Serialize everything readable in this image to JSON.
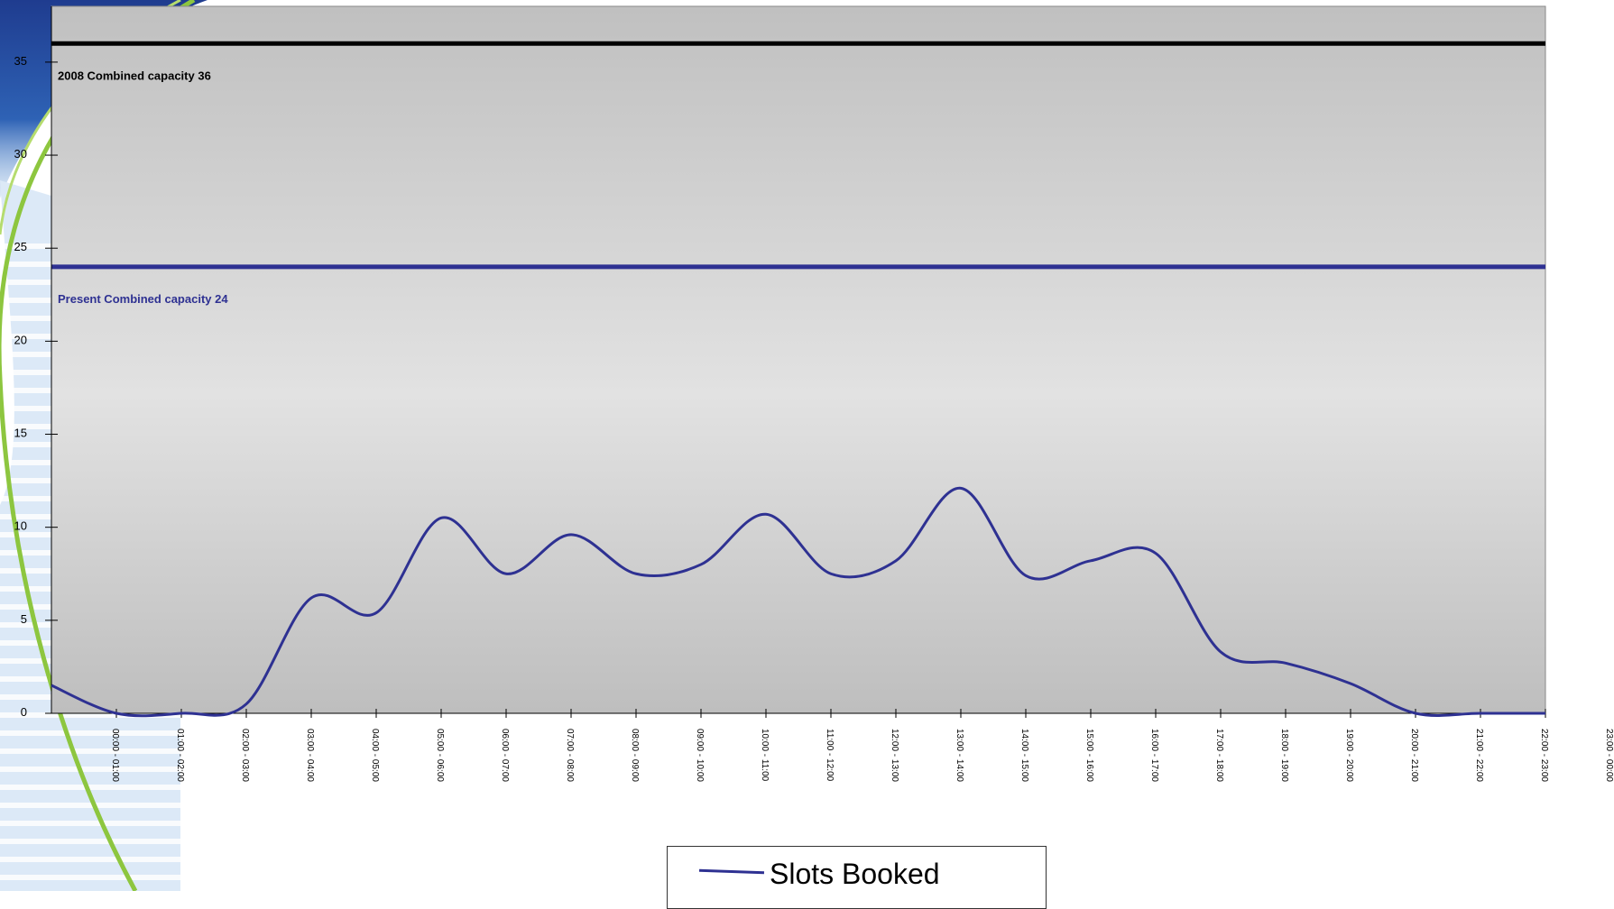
{
  "chart_data": {
    "type": "line",
    "categories": [
      "00:00 - 01:00",
      "01:00 - 02:00",
      "02:00 - 03:00",
      "03:00 - 04:00",
      "04:00 - 05:00",
      "05:00 - 06:00",
      "06:00 - 07:00",
      "07:00 - 08:00",
      "08:00 - 09:00",
      "09:00 - 10:00",
      "10:00 - 11:00",
      "11:00 - 12:00",
      "12:00 - 13:00",
      "13:00 - 14:00",
      "14:00 - 15:00",
      "15:00 - 16:00",
      "16:00 - 17:00",
      "17:00 - 18:00",
      "18:00 - 19:00",
      "19:00 - 20:00",
      "20:00 - 21:00",
      "21:00 - 22:00",
      "22:00 - 23:00",
      "23:00 - 00:00"
    ],
    "series": [
      {
        "name": "Slots Booked",
        "color": "#2e3192",
        "values": [
          1.5,
          0,
          0,
          0.5,
          6.2,
          5.4,
          10.5,
          7.5,
          9.6,
          7.5,
          8,
          10.7,
          7.5,
          8.2,
          12.1,
          7.4,
          8.2,
          8.6,
          3.3,
          2.7,
          1.6,
          0,
          0,
          0
        ]
      }
    ],
    "reference_lines": [
      {
        "value": 36,
        "label": "2008  Combined capacity 36",
        "color": "#000000"
      },
      {
        "value": 24,
        "label": "Present  Combined capacity 24",
        "color": "#2e3192"
      }
    ],
    "ylim": [
      0,
      38
    ],
    "yticks": [
      0,
      5,
      10,
      15,
      20,
      25,
      30,
      35
    ],
    "legend_position": "bottom"
  }
}
